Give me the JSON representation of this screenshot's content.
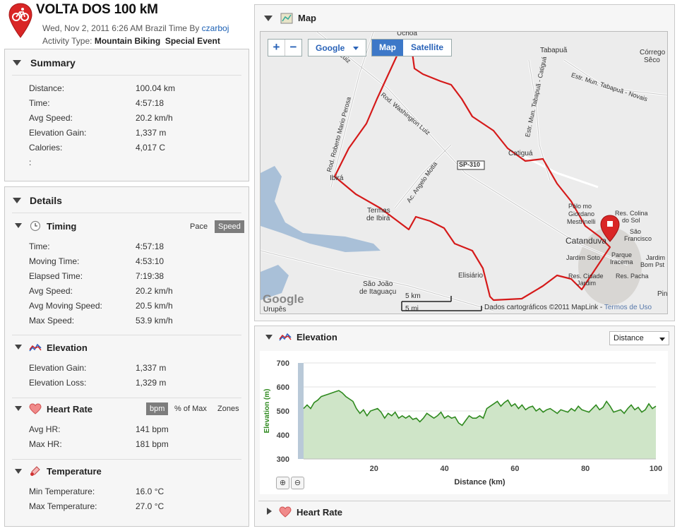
{
  "header": {
    "title": "VOLTA DOS 100 kM",
    "datetime": "Wed, Nov 2, 2011 6:26 AM Brazil Time By",
    "author": "czarboj",
    "activity_prefix": "Activity Type:",
    "activity_type": "Mountain Biking",
    "event_type": "Special Event"
  },
  "summary": {
    "title": "Summary",
    "rows": [
      {
        "label": "Distance:",
        "value": "100.04 km"
      },
      {
        "label": "Time:",
        "value": "4:57:18"
      },
      {
        "label": "Avg Speed:",
        "value": "20.2 km/h"
      },
      {
        "label": "Elevation Gain:",
        "value": "1,337 m"
      },
      {
        "label": "Calories:",
        "value": "4,017 C"
      },
      {
        "label": ":",
        "value": ""
      }
    ]
  },
  "details": {
    "title": "Details",
    "timing": {
      "title": "Timing",
      "toggle_pace": "Pace",
      "toggle_speed": "Speed",
      "rows": [
        {
          "label": "Time:",
          "value": "4:57:18"
        },
        {
          "label": "Moving Time:",
          "value": "4:53:10"
        },
        {
          "label": "Elapsed Time:",
          "value": "7:19:38"
        },
        {
          "label": "Avg Speed:",
          "value": "20.2 km/h"
        },
        {
          "label": "Avg Moving Speed:",
          "value": "20.5 km/h"
        },
        {
          "label": "Max Speed:",
          "value": "53.9 km/h"
        }
      ]
    },
    "elevation": {
      "title": "Elevation",
      "rows": [
        {
          "label": "Elevation Gain:",
          "value": "1,337 m"
        },
        {
          "label": "Elevation Loss:",
          "value": "1,329 m"
        }
      ]
    },
    "heart_rate": {
      "title": "Heart Rate",
      "toggle_bpm": "bpm",
      "toggle_pct": "% of Max",
      "toggle_zones": "Zones",
      "rows": [
        {
          "label": "Avg HR:",
          "value": "141 bpm"
        },
        {
          "label": "Max HR:",
          "value": "181 bpm"
        }
      ]
    },
    "temperature": {
      "title": "Temperature",
      "rows": [
        {
          "label": "Min Temperature:",
          "value": "16.0 °C"
        },
        {
          "label": "Max Temperature:",
          "value": "27.0 °C"
        }
      ]
    }
  },
  "map": {
    "title": "Map",
    "zoom_in": "+",
    "zoom_out": "−",
    "provider": "Google",
    "type_map": "Map",
    "type_satellite": "Satellite",
    "labels": {
      "uchoa": "Uchoa",
      "tabapua": "Tabapuã",
      "corrego": "Córrego",
      "seco": "Sêco",
      "estr_tabapua": "Estr. Mun. Tabapuã - Novais",
      "estr_catigua": "Estr. Mun. Tabapuã - Catiguá",
      "rod_wl": "Rod. Washington Luiz",
      "rod_rmp": "Rod. Roberto Mario Perosa",
      "luiz": "Luiz",
      "catigua": "Catiguá",
      "sp310": "SP-310",
      "ibira": "Ibirá",
      "ac_angelo": "Ac. Angelo Motta",
      "termas": "Termas",
      "de_ibira": "de Ibirá",
      "polo1": "Pólo mo",
      "polo2": "Giordano",
      "polo3": "Mestrinelli",
      "res_colina": "Res. Colina",
      "do_sol": "do Sol",
      "sao": "São",
      "francisco": "Francisco",
      "catanduva": "Catanduva",
      "parque": "Parque",
      "iracema": "Iracema",
      "jardim_soto": "Jardim Soto",
      "jardim": "Jardim",
      "bom_pst": "Bom Pst",
      "elisiario": "Elisiário",
      "res_cidade": "Res. Cidade",
      "jardim2": "Jardim",
      "res_pacha": "Res. Pacha",
      "sao_joao": "São João",
      "de_itaguacu": "de Itaguaçu",
      "urupes": "Urupês",
      "pin": "Pin",
      "google_logo": "Google",
      "scale_km": "5 km",
      "scale_mi": "5 mi",
      "attribution": "Dados cartográficos ©2011 MapLink - ",
      "terms": "Termos de Uso"
    }
  },
  "elevation_chart": {
    "title": "Elevation",
    "x_selector": "Distance",
    "collapsed_panel": "Heart Rate"
  },
  "chart_data": {
    "type": "area",
    "title": "",
    "xlabel": "Distance (km)",
    "ylabel": "Elevation (m)",
    "xlim": [
      0,
      100
    ],
    "ylim": [
      300,
      700
    ],
    "xticks": [
      20,
      40,
      60,
      80,
      100
    ],
    "yticks": [
      300,
      400,
      500,
      600,
      700
    ],
    "grid": true,
    "color": "#2f8a1f",
    "fill": "#cfe5c8",
    "x": [
      0,
      1,
      2,
      3,
      4,
      5,
      6,
      7,
      8,
      9,
      10,
      11,
      12,
      13,
      14,
      15,
      16,
      17,
      18,
      19,
      20,
      21,
      22,
      23,
      24,
      25,
      26,
      27,
      28,
      29,
      30,
      31,
      32,
      33,
      34,
      35,
      36,
      37,
      38,
      39,
      40,
      41,
      42,
      43,
      44,
      45,
      46,
      47,
      48,
      49,
      50,
      51,
      52,
      53,
      54,
      55,
      56,
      57,
      58,
      59,
      60,
      61,
      62,
      63,
      64,
      65,
      66,
      67,
      68,
      69,
      70,
      71,
      72,
      73,
      74,
      75,
      76,
      77,
      78,
      79,
      80,
      81,
      82,
      83,
      84,
      85,
      86,
      87,
      88,
      89,
      90,
      91,
      92,
      93,
      94,
      95,
      96,
      97,
      98,
      99,
      100
    ],
    "values": [
      510,
      525,
      510,
      535,
      545,
      560,
      565,
      570,
      575,
      580,
      585,
      575,
      560,
      550,
      540,
      510,
      490,
      505,
      480,
      500,
      505,
      510,
      495,
      470,
      490,
      480,
      495,
      470,
      480,
      470,
      480,
      465,
      470,
      455,
      470,
      490,
      480,
      470,
      480,
      495,
      470,
      480,
      470,
      475,
      450,
      440,
      460,
      480,
      470,
      470,
      480,
      470,
      510,
      520,
      530,
      540,
      520,
      535,
      545,
      520,
      530,
      510,
      525,
      505,
      515,
      520,
      500,
      510,
      495,
      505,
      510,
      500,
      490,
      505,
      500,
      495,
      510,
      500,
      520,
      505,
      500,
      495,
      510,
      525,
      505,
      515,
      540,
      520,
      495,
      500,
      505,
      490,
      510,
      525,
      505,
      515,
      495,
      505,
      530,
      510,
      520
    ]
  }
}
